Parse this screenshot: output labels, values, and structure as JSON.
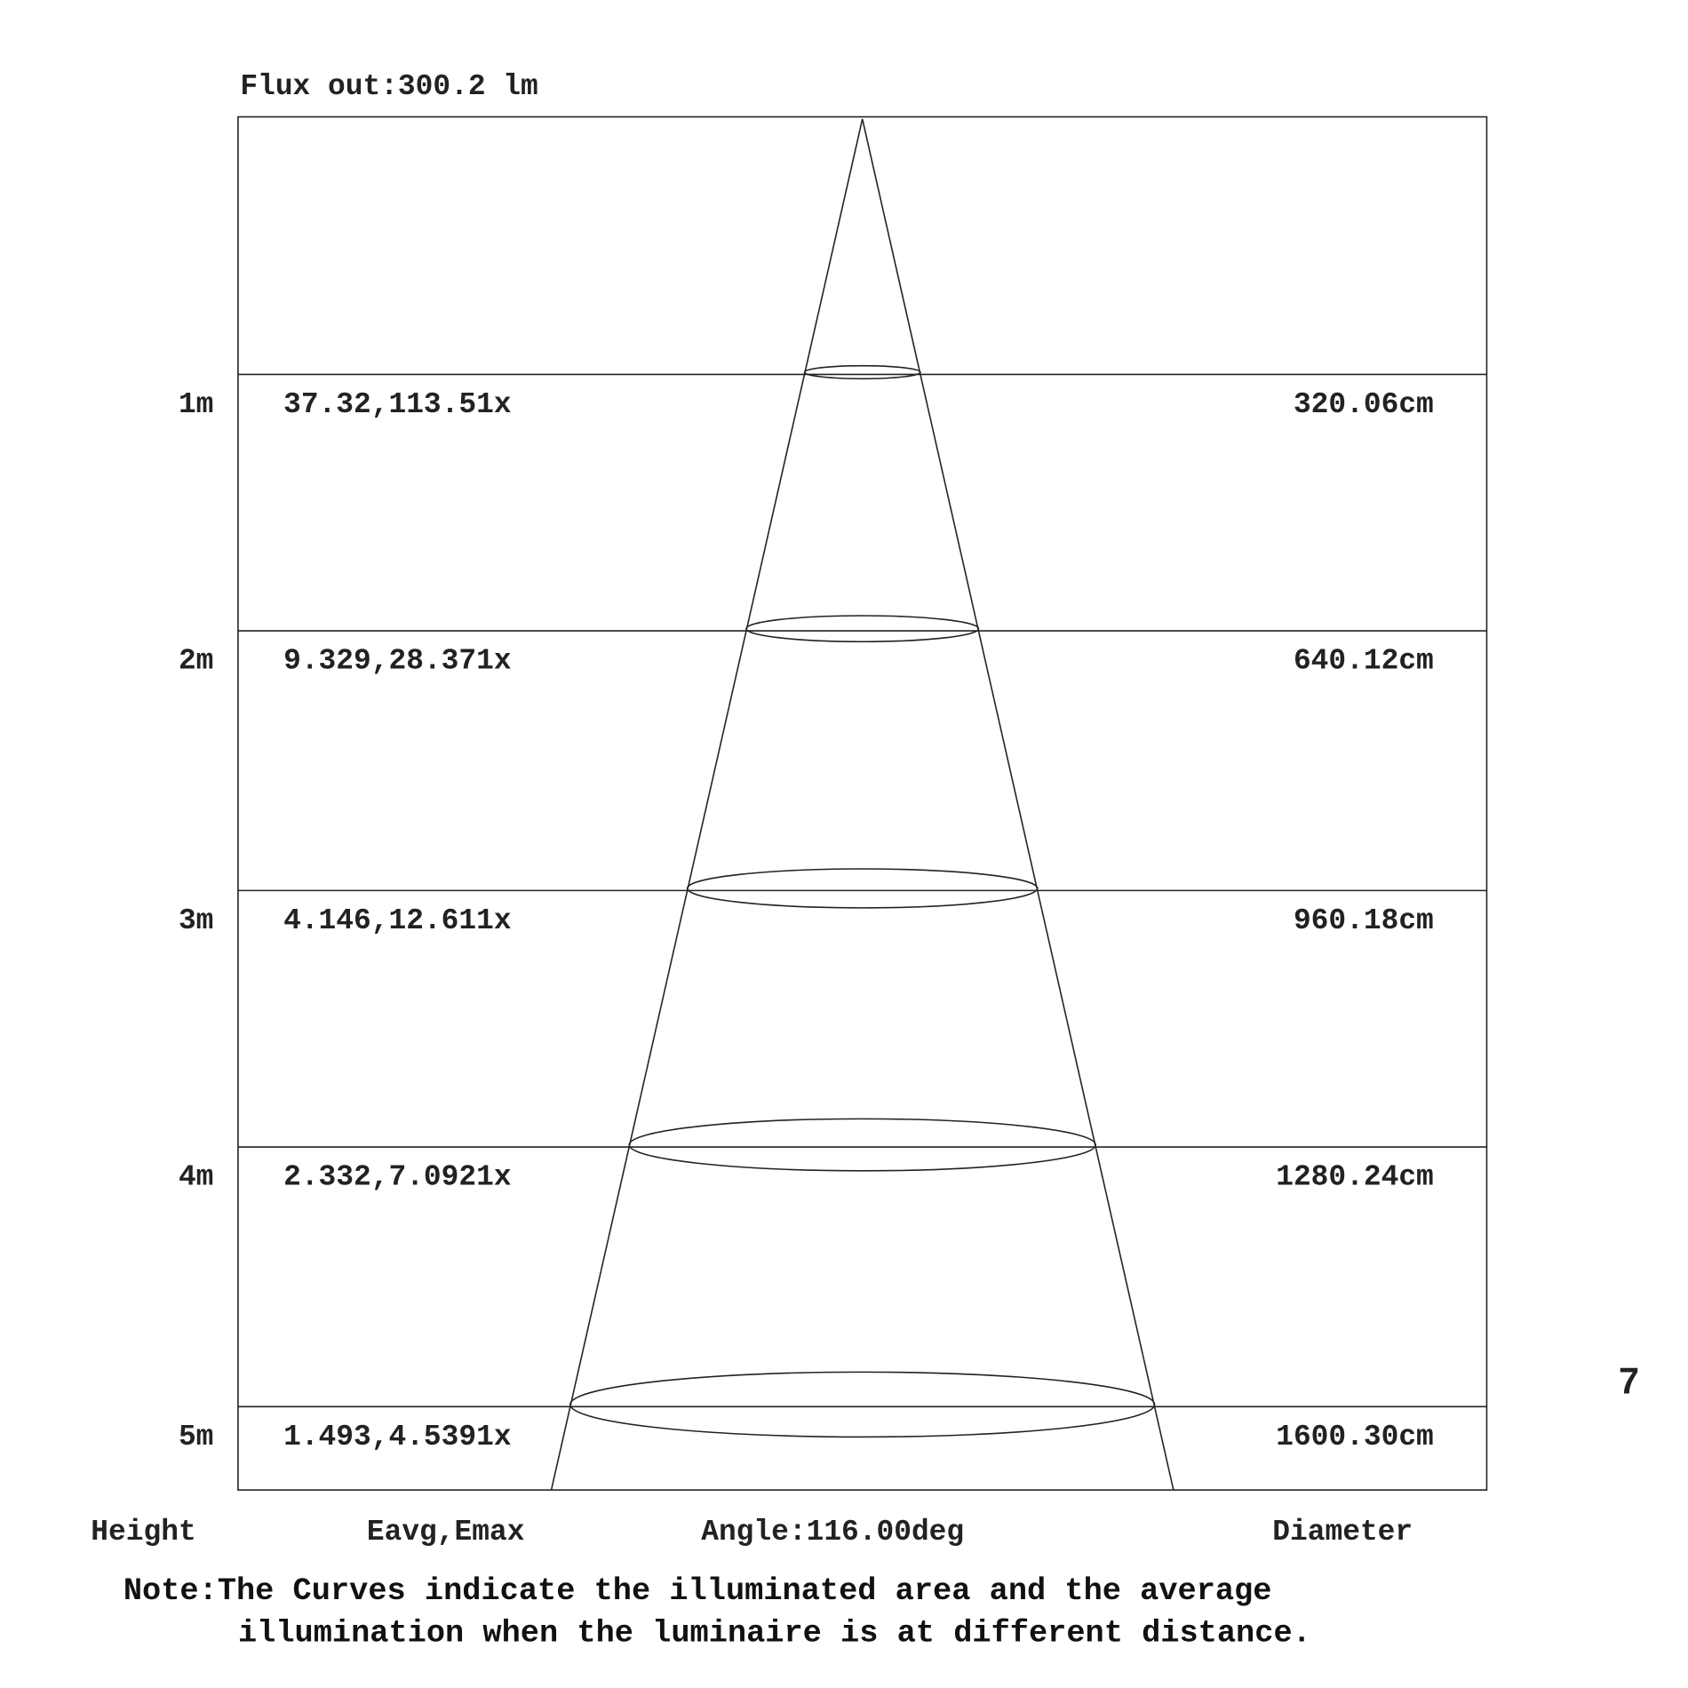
{
  "flux_label": "Flux out:300.2 lm",
  "chart_data": {
    "type": "table",
    "beam_angle_deg": 116.0,
    "rows": [
      {
        "height": "1m",
        "illuminance": "37.32,113.51x",
        "diameter": "320.06cm",
        "height_m": 1,
        "eavg_lx": 37.32,
        "emax_lx": 113.5,
        "diameter_cm": 320.06
      },
      {
        "height": "2m",
        "illuminance": "9.329,28.371x",
        "diameter": "640.12cm",
        "height_m": 2,
        "eavg_lx": 9.329,
        "emax_lx": 28.37,
        "diameter_cm": 640.12
      },
      {
        "height": "3m",
        "illuminance": "4.146,12.611x",
        "diameter": "960.18cm",
        "height_m": 3,
        "eavg_lx": 4.146,
        "emax_lx": 12.61,
        "diameter_cm": 960.18
      },
      {
        "height": "4m",
        "illuminance": "2.332,7.0921x",
        "diameter": "1280.24cm",
        "height_m": 4,
        "eavg_lx": 2.332,
        "emax_lx": 7.092,
        "diameter_cm": 1280.24
      },
      {
        "height": "5m",
        "illuminance": "1.493,4.5391x",
        "diameter": "1600.30cm",
        "height_m": 5,
        "eavg_lx": 1.493,
        "emax_lx": 4.539,
        "diameter_cm": 1600.3
      }
    ]
  },
  "footer": {
    "height_label": "Height",
    "illuminance_label": "Eavg,Emax",
    "angle_label": "Angle:116.00deg",
    "diameter_label": "Diameter"
  },
  "note": {
    "line1": "Note:The Curves indicate the illuminated area and the average",
    "line2": "illumination when the luminaire is at different distance."
  },
  "page_number": "7"
}
